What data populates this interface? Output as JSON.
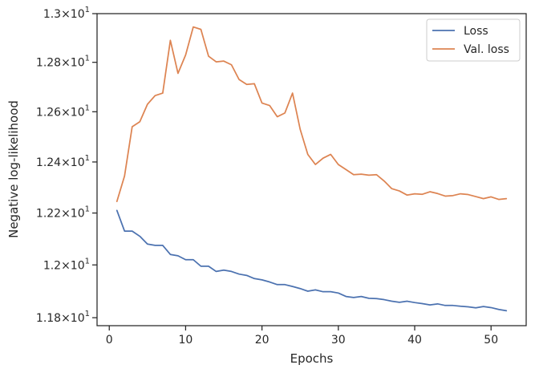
{
  "chart_data": {
    "type": "line",
    "title": "",
    "xlabel": "Epochs",
    "ylabel": "Negative log-likelihood",
    "yscale": "log",
    "xlim": [
      -1.6,
      54.6
    ],
    "ylim": [
      11.77,
      13.0
    ],
    "xticks": [
      {
        "value": 0,
        "label": "0"
      },
      {
        "value": 10,
        "label": "10"
      },
      {
        "value": 20,
        "label": "20"
      },
      {
        "value": 30,
        "label": "30"
      },
      {
        "value": 40,
        "label": "40"
      },
      {
        "value": 50,
        "label": "50"
      }
    ],
    "yticks": [
      {
        "value": 11.8,
        "mantissa": "1.18",
        "base": "10",
        "exp": "1"
      },
      {
        "value": 12.0,
        "mantissa": "1.2",
        "base": "10",
        "exp": "1"
      },
      {
        "value": 12.2,
        "mantissa": "1.22",
        "base": "10",
        "exp": "1"
      },
      {
        "value": 12.4,
        "mantissa": "1.24",
        "base": "10",
        "exp": "1"
      },
      {
        "value": 12.6,
        "mantissa": "1.26",
        "base": "10",
        "exp": "1"
      },
      {
        "value": 12.8,
        "mantissa": "1.28",
        "base": "10",
        "exp": "1"
      },
      {
        "value": 13.0,
        "mantissa": "1.3",
        "base": "10",
        "exp": "1"
      }
    ],
    "times_sign": "×",
    "grid": false,
    "legend_position": "top-right",
    "x": [
      1,
      2,
      3,
      4,
      5,
      6,
      7,
      8,
      9,
      10,
      11,
      12,
      13,
      14,
      15,
      16,
      17,
      18,
      19,
      20,
      21,
      22,
      23,
      24,
      25,
      26,
      27,
      28,
      29,
      30,
      31,
      32,
      33,
      34,
      35,
      36,
      37,
      38,
      39,
      40,
      41,
      42,
      43,
      44,
      45,
      46,
      47,
      48,
      49,
      50,
      51,
      52
    ],
    "series": [
      {
        "name": "Loss",
        "color": "#4c72b0",
        "values": [
          12.21,
          12.13,
          12.13,
          12.11,
          12.08,
          12.075,
          12.075,
          12.04,
          12.035,
          12.02,
          12.02,
          11.995,
          11.995,
          11.975,
          11.98,
          11.975,
          11.965,
          11.96,
          11.948,
          11.943,
          11.935,
          11.925,
          11.925,
          11.918,
          11.91,
          11.9,
          11.905,
          11.898,
          11.898,
          11.893,
          11.88,
          11.876,
          11.88,
          11.873,
          11.872,
          11.868,
          11.862,
          11.858,
          11.862,
          11.857,
          11.853,
          11.848,
          11.852,
          11.846,
          11.846,
          11.843,
          11.841,
          11.837,
          11.842,
          11.838,
          11.831,
          11.826
        ]
      },
      {
        "name": "Val. loss",
        "color": "#dd8452",
        "values": [
          12.245,
          12.345,
          12.54,
          12.56,
          12.63,
          12.665,
          12.675,
          12.89,
          12.755,
          12.83,
          12.945,
          12.935,
          12.825,
          12.802,
          12.805,
          12.79,
          12.73,
          12.71,
          12.713,
          12.635,
          12.625,
          12.58,
          12.595,
          12.675,
          12.53,
          12.43,
          12.39,
          12.415,
          12.43,
          12.39,
          12.37,
          12.35,
          12.352,
          12.348,
          12.35,
          12.325,
          12.295,
          12.286,
          12.27,
          12.275,
          12.273,
          12.283,
          12.276,
          12.266,
          12.268,
          12.275,
          12.272,
          12.264,
          12.256,
          12.263,
          12.253,
          12.256
        ]
      }
    ]
  }
}
